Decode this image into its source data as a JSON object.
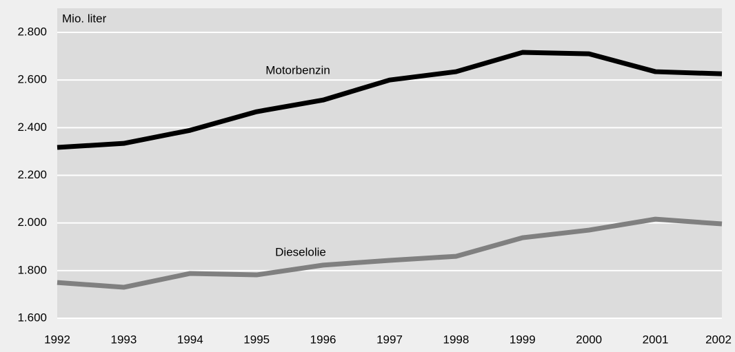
{
  "chart_data": {
    "type": "line",
    "y_axis_label": "Mio. liter",
    "categories": [
      "1992",
      "1993",
      "1994",
      "1995",
      "1996",
      "1997",
      "1998",
      "1999",
      "2000",
      "2001",
      "2002"
    ],
    "series": [
      {
        "name": "Motorbenzin",
        "color": "#000000",
        "values": [
          2317,
          2334,
          2389,
          2467,
          2516,
          2600,
          2635,
          2716,
          2710,
          2635,
          2626
        ]
      },
      {
        "name": "Dieselolie",
        "color": "#808080",
        "values": [
          1750,
          1730,
          1788,
          1782,
          1823,
          1843,
          1860,
          1938,
          1970,
          2016,
          1996
        ]
      }
    ],
    "ylim": [
      1600,
      2800
    ],
    "yticks": [
      {
        "value": 1600,
        "label": "1.600"
      },
      {
        "value": 1800,
        "label": "1.800"
      },
      {
        "value": 2000,
        "label": "2.000"
      },
      {
        "value": 2200,
        "label": "2.200"
      },
      {
        "value": 2400,
        "label": "2.400"
      },
      {
        "value": 2600,
        "label": "2.600"
      },
      {
        "value": 2800,
        "label": "2.800"
      }
    ],
    "grid": true
  }
}
